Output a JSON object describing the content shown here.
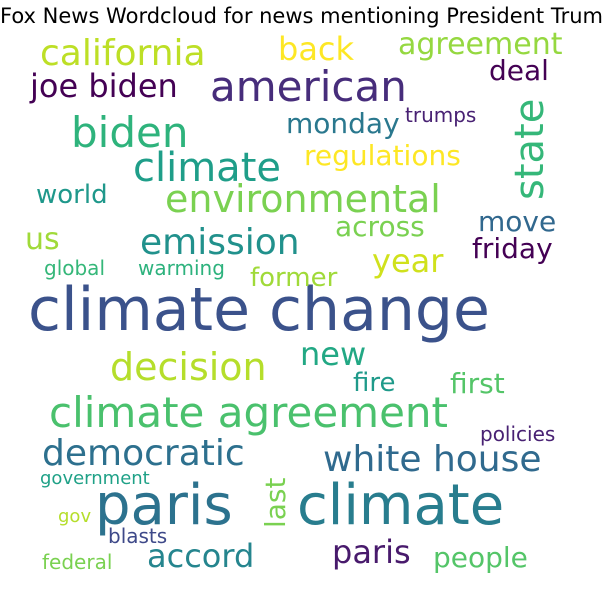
{
  "title": "Fox News Wordcloud for news mentioning President Trump",
  "words": [
    {
      "text": "climate change",
      "color": "#3b528b"
    },
    {
      "text": "paris",
      "color": "#2c728e"
    },
    {
      "text": "climate",
      "color": "#287d8e"
    },
    {
      "text": "climate agreement",
      "color": "#4ac16d"
    },
    {
      "text": "biden",
      "color": "#2eb37c"
    },
    {
      "text": "american",
      "color": "#472d7b"
    },
    {
      "text": "climate",
      "color": "#1f9e89"
    },
    {
      "text": "environmental",
      "color": "#7ad151"
    },
    {
      "text": "emission",
      "color": "#21918c"
    },
    {
      "text": "decision",
      "color": "#b5de2b"
    },
    {
      "text": "california",
      "color": "#bddf26"
    },
    {
      "text": "joe biden",
      "color": "#440154"
    },
    {
      "text": "state",
      "color": "#35b779"
    },
    {
      "text": "white house",
      "color": "#306a8e"
    },
    {
      "text": "democratic",
      "color": "#2d708e"
    },
    {
      "text": "accord",
      "color": "#25858e"
    },
    {
      "text": "paris",
      "color": "#481a6c"
    },
    {
      "text": "agreement",
      "color": "#95d840"
    },
    {
      "text": "back",
      "color": "#fde725"
    },
    {
      "text": "deal",
      "color": "#440154"
    },
    {
      "text": "monday",
      "color": "#2a788e"
    },
    {
      "text": "trumps",
      "color": "#482173"
    },
    {
      "text": "regulations",
      "color": "#fde725"
    },
    {
      "text": "world",
      "color": "#1f988b"
    },
    {
      "text": "across",
      "color": "#7ad151"
    },
    {
      "text": "move",
      "color": "#31688e"
    },
    {
      "text": "friday",
      "color": "#440154"
    },
    {
      "text": "us",
      "color": "#a0da39"
    },
    {
      "text": "year",
      "color": "#d0e11c"
    },
    {
      "text": "global",
      "color": "#35b779"
    },
    {
      "text": "warming",
      "color": "#2db27d"
    },
    {
      "text": "former",
      "color": "#a0da39"
    },
    {
      "text": "new",
      "color": "#22a884"
    },
    {
      "text": "fire",
      "color": "#1f9a8a"
    },
    {
      "text": "first",
      "color": "#54c568"
    },
    {
      "text": "policies",
      "color": "#482173"
    },
    {
      "text": "government",
      "color": "#1fa187"
    },
    {
      "text": "last",
      "color": "#7ad151"
    },
    {
      "text": "gov",
      "color": "#b5de2b"
    },
    {
      "text": "blasts",
      "color": "#3e4989"
    },
    {
      "text": "federal",
      "color": "#7ad151"
    },
    {
      "text": "people",
      "color": "#54c568"
    }
  ]
}
